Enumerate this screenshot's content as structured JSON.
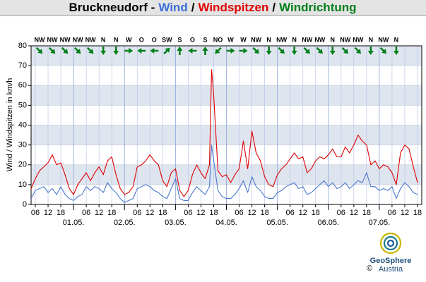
{
  "chart_data": {
    "type": "line",
    "title_parts": [
      {
        "text": "Bruckneudorf -",
        "color": "#000000"
      },
      {
        "text": "Wind",
        "color": "#3a6fd8"
      },
      {
        "text": "/",
        "color": "#000000"
      },
      {
        "text": "Windspitzen",
        "color": "#e00000"
      },
      {
        "text": "/",
        "color": "#000000"
      },
      {
        "text": "Windrichtung",
        "color": "#00801a"
      }
    ],
    "ylabel": "Wind / Windspitzen in km/h",
    "x": [
      4,
      6,
      8,
      10,
      12,
      14,
      16,
      18,
      20,
      22,
      24,
      26,
      28,
      30,
      32,
      34,
      36,
      38,
      40,
      42,
      44,
      46,
      48,
      50,
      52,
      54,
      56,
      58,
      60,
      62,
      64,
      66,
      68,
      70,
      72,
      74,
      76,
      78,
      80,
      82,
      84,
      86,
      88,
      89,
      90,
      92,
      94,
      96,
      98,
      100,
      102,
      104,
      106,
      108,
      110,
      112,
      114,
      116,
      118,
      120,
      122,
      124,
      126,
      128,
      130,
      132,
      134,
      136,
      138,
      140,
      142,
      144,
      146,
      148,
      150,
      152,
      154,
      156,
      158,
      160,
      162,
      164,
      166,
      168,
      170,
      172,
      174,
      176,
      178,
      180,
      182,
      184,
      186
    ],
    "series": [
      {
        "name": "Windspitzen",
        "color": "#e00000",
        "values": [
          8,
          13,
          17,
          19,
          21,
          25,
          20,
          21,
          15,
          8,
          5,
          10,
          13,
          16,
          12,
          16,
          19,
          15,
          22,
          24,
          15,
          8,
          5,
          6,
          9,
          19,
          20,
          22,
          25,
          22,
          20,
          12,
          9,
          16,
          18,
          7,
          4,
          7,
          15,
          20,
          16,
          13,
          20,
          68,
          55,
          17,
          14,
          15,
          11,
          15,
          18,
          32,
          18,
          37,
          26,
          22,
          14,
          10,
          9,
          15,
          18,
          20,
          23,
          26,
          23,
          24,
          16,
          18,
          22,
          24,
          23,
          25,
          28,
          24,
          24,
          29,
          26,
          30,
          35,
          32,
          30,
          20,
          22,
          18,
          20,
          19,
          16,
          10,
          26,
          30,
          28,
          19,
          11
        ]
      },
      {
        "name": "Wind",
        "color": "#4a78d0",
        "values": [
          3,
          7,
          8,
          9,
          6,
          8,
          5,
          9,
          5,
          3,
          2,
          4,
          5,
          9,
          7,
          9,
          8,
          6,
          11,
          8,
          6,
          3,
          1,
          2,
          3,
          8,
          9,
          10,
          9,
          7,
          6,
          4,
          3,
          8,
          13,
          3,
          2,
          2,
          6,
          9,
          7,
          5,
          9,
          30,
          22,
          7,
          4,
          3,
          3,
          5,
          8,
          12,
          6,
          14,
          9,
          7,
          4,
          3,
          3,
          6,
          7,
          9,
          10,
          11,
          8,
          9,
          5,
          6,
          8,
          10,
          12,
          9,
          11,
          8,
          9,
          11,
          8,
          10,
          12,
          11,
          16,
          9,
          9,
          7,
          8,
          7,
          9,
          3,
          8,
          11,
          9,
          6,
          5
        ]
      }
    ],
    "xlim": [
      4,
      188
    ],
    "ylim": [
      0,
      80
    ],
    "yticks": [
      0,
      10,
      20,
      30,
      40,
      50,
      60,
      70,
      80
    ],
    "xticks": [
      {
        "value": 6,
        "label": "06"
      },
      {
        "value": 12,
        "label": "12"
      },
      {
        "value": 18,
        "label": "18"
      },
      {
        "value": 30,
        "label": "06"
      },
      {
        "value": 36,
        "label": "12"
      },
      {
        "value": 42,
        "label": "18"
      },
      {
        "value": 54,
        "label": "06"
      },
      {
        "value": 60,
        "label": "12"
      },
      {
        "value": 66,
        "label": "18"
      },
      {
        "value": 78,
        "label": "06"
      },
      {
        "value": 84,
        "label": "12"
      },
      {
        "value": 90,
        "label": "18"
      },
      {
        "value": 102,
        "label": "06"
      },
      {
        "value": 108,
        "label": "12"
      },
      {
        "value": 114,
        "label": "18"
      },
      {
        "value": 126,
        "label": "06"
      },
      {
        "value": 132,
        "label": "12"
      },
      {
        "value": 138,
        "label": "18"
      },
      {
        "value": 150,
        "label": "06"
      },
      {
        "value": 156,
        "label": "12"
      },
      {
        "value": 162,
        "label": "18"
      },
      {
        "value": 174,
        "label": "06"
      },
      {
        "value": 180,
        "label": "12"
      },
      {
        "value": 186,
        "label": "18"
      }
    ],
    "date_ticks": [
      {
        "value": 24,
        "label": "01.05."
      },
      {
        "value": 48,
        "label": "02.05."
      },
      {
        "value": 72,
        "label": "03.05."
      },
      {
        "value": 96,
        "label": "04.05."
      },
      {
        "value": 120,
        "label": "05.05."
      },
      {
        "value": 144,
        "label": "06.05."
      },
      {
        "value": 168,
        "label": "07.05."
      }
    ],
    "direction": {
      "color": "#00801a",
      "x": [
        8,
        14,
        20,
        26,
        32,
        38,
        44,
        50,
        56,
        62,
        68,
        74,
        80,
        86,
        92,
        98,
        104,
        110,
        116,
        122,
        128,
        134,
        140,
        146,
        152,
        158,
        164,
        170,
        176
      ],
      "labels": [
        "NW",
        "NW",
        "NW",
        "NW",
        "NW",
        "N",
        "N",
        "W",
        "O",
        "O",
        "SW",
        "S",
        "O",
        "S",
        "NO",
        "W",
        "W",
        "NW",
        "N",
        "NW",
        "N",
        "NW",
        "NW",
        "N",
        "NW",
        "NW",
        "N",
        "NW",
        "N"
      ]
    },
    "grid": true
  },
  "logo": {
    "name": "GeoSphere",
    "sub": "Austria",
    "copyright": "©"
  }
}
